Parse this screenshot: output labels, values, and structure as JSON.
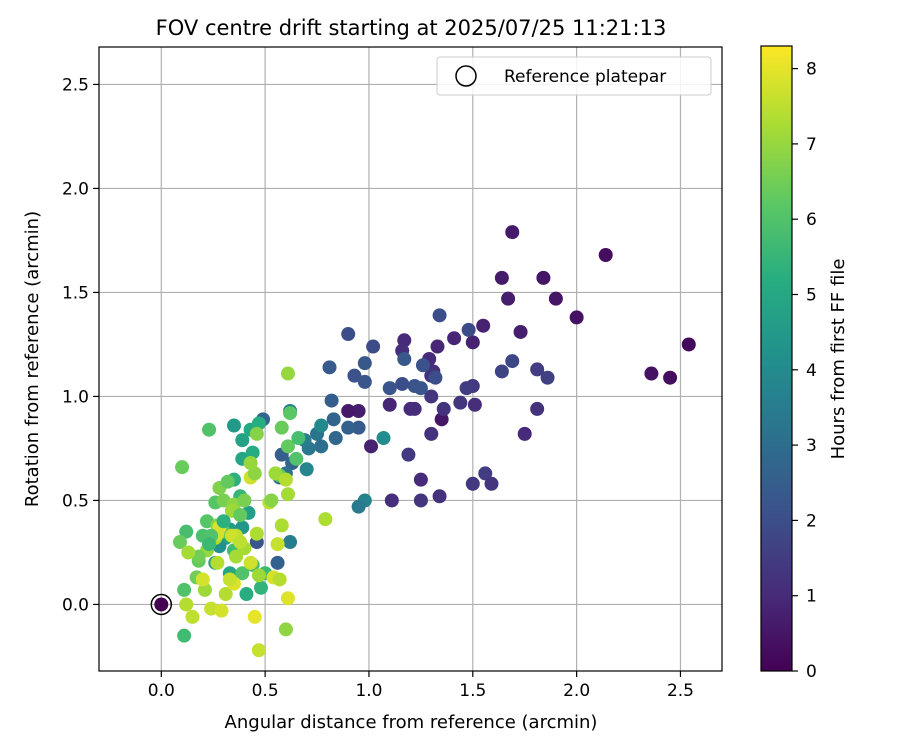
{
  "chart_data": {
    "type": "scatter",
    "title": "FOV centre drift starting at 2025/07/25 11:21:13",
    "xlabel": "Angular distance from reference (arcmin)",
    "ylabel": "Rotation from reference (arcmin)",
    "xlim": [
      -0.3,
      2.7
    ],
    "ylim": [
      -0.32,
      2.68
    ],
    "xticks": [
      0.0,
      0.5,
      1.0,
      1.5,
      2.0,
      2.5
    ],
    "xtick_labels": [
      "0.0",
      "0.5",
      "1.0",
      "1.5",
      "2.0",
      "2.5"
    ],
    "yticks": [
      0.0,
      0.5,
      1.0,
      1.5,
      2.0,
      2.5
    ],
    "ytick_labels": [
      "0.0",
      "0.5",
      "1.0",
      "1.5",
      "2.0",
      "2.5"
    ],
    "grid": true,
    "legend": {
      "position": "top-right",
      "entries": [
        "Reference platepar"
      ]
    },
    "colorbar": {
      "label": "Hours from first FF file",
      "colormap": "viridis",
      "range": [
        0,
        8.3
      ],
      "ticks": [
        0,
        1,
        2,
        3,
        4,
        5,
        6,
        7,
        8
      ],
      "tick_labels": [
        "0",
        "1",
        "2",
        "3",
        "4",
        "5",
        "6",
        "7",
        "8"
      ]
    },
    "reference_point": {
      "x": 0.0,
      "y": 0.0,
      "name": "Reference platepar"
    },
    "points": [
      {
        "x": 0.0,
        "y": 0.0,
        "h": 0.0
      },
      {
        "x": 2.54,
        "y": 1.25,
        "h": 0.2
      },
      {
        "x": 2.14,
        "y": 1.68,
        "h": 0.3
      },
      {
        "x": 2.45,
        "y": 1.09,
        "h": 0.3
      },
      {
        "x": 2.36,
        "y": 1.11,
        "h": 0.4
      },
      {
        "x": 2.0,
        "y": 1.38,
        "h": 0.4
      },
      {
        "x": 1.9,
        "y": 1.47,
        "h": 0.5
      },
      {
        "x": 1.84,
        "y": 1.57,
        "h": 0.5
      },
      {
        "x": 1.69,
        "y": 1.79,
        "h": 0.6
      },
      {
        "x": 1.64,
        "y": 1.57,
        "h": 0.6
      },
      {
        "x": 1.67,
        "y": 1.47,
        "h": 0.7
      },
      {
        "x": 1.73,
        "y": 1.31,
        "h": 0.7
      },
      {
        "x": 1.55,
        "y": 1.34,
        "h": 0.8
      },
      {
        "x": 1.5,
        "y": 1.26,
        "h": 0.8
      },
      {
        "x": 1.41,
        "y": 1.28,
        "h": 0.9
      },
      {
        "x": 1.33,
        "y": 1.24,
        "h": 0.9
      },
      {
        "x": 1.29,
        "y": 1.18,
        "h": 1.0
      },
      {
        "x": 1.17,
        "y": 1.27,
        "h": 1.0
      },
      {
        "x": 1.16,
        "y": 1.22,
        "h": 1.1
      },
      {
        "x": 1.31,
        "y": 1.12,
        "h": 1.1
      },
      {
        "x": 1.3,
        "y": 1.1,
        "h": 1.2
      },
      {
        "x": 0.95,
        "y": 0.93,
        "h": 0.7
      },
      {
        "x": 0.9,
        "y": 0.93,
        "h": 0.6
      },
      {
        "x": 1.01,
        "y": 0.76,
        "h": 0.8
      },
      {
        "x": 1.1,
        "y": 0.96,
        "h": 0.9
      },
      {
        "x": 1.2,
        "y": 0.94,
        "h": 1.0
      },
      {
        "x": 1.22,
        "y": 0.94,
        "h": 1.1
      },
      {
        "x": 1.35,
        "y": 0.89,
        "h": 0.5
      },
      {
        "x": 1.36,
        "y": 0.94,
        "h": 1.2
      },
      {
        "x": 1.44,
        "y": 0.97,
        "h": 1.3
      },
      {
        "x": 1.5,
        "y": 1.05,
        "h": 1.4
      },
      {
        "x": 1.47,
        "y": 1.04,
        "h": 1.5
      },
      {
        "x": 1.51,
        "y": 0.96,
        "h": 1.1
      },
      {
        "x": 1.3,
        "y": 0.82,
        "h": 1.2
      },
      {
        "x": 1.3,
        "y": 1.0,
        "h": 1.3
      },
      {
        "x": 1.19,
        "y": 0.72,
        "h": 1.4
      },
      {
        "x": 1.25,
        "y": 0.6,
        "h": 1.0
      },
      {
        "x": 1.11,
        "y": 0.5,
        "h": 1.1
      },
      {
        "x": 1.25,
        "y": 0.5,
        "h": 1.3
      },
      {
        "x": 1.34,
        "y": 0.52,
        "h": 1.2
      },
      {
        "x": 1.5,
        "y": 0.58,
        "h": 1.4
      },
      {
        "x": 1.56,
        "y": 0.63,
        "h": 1.5
      },
      {
        "x": 1.59,
        "y": 0.58,
        "h": 1.3
      },
      {
        "x": 1.75,
        "y": 0.82,
        "h": 1.0
      },
      {
        "x": 1.81,
        "y": 0.94,
        "h": 1.2
      },
      {
        "x": 1.81,
        "y": 1.13,
        "h": 1.5
      },
      {
        "x": 1.86,
        "y": 1.09,
        "h": 1.6
      },
      {
        "x": 1.64,
        "y": 1.12,
        "h": 1.7
      },
      {
        "x": 1.69,
        "y": 1.17,
        "h": 1.8
      },
      {
        "x": 1.48,
        "y": 1.32,
        "h": 1.9
      },
      {
        "x": 1.34,
        "y": 1.39,
        "h": 2.0
      },
      {
        "x": 1.22,
        "y": 1.05,
        "h": 2.1
      },
      {
        "x": 1.25,
        "y": 1.04,
        "h": 2.2
      },
      {
        "x": 1.32,
        "y": 1.09,
        "h": 2.0
      },
      {
        "x": 1.26,
        "y": 1.15,
        "h": 2.1
      },
      {
        "x": 1.17,
        "y": 1.18,
        "h": 2.3
      },
      {
        "x": 1.16,
        "y": 1.06,
        "h": 2.0
      },
      {
        "x": 1.1,
        "y": 1.04,
        "h": 2.2
      },
      {
        "x": 1.02,
        "y": 1.24,
        "h": 1.9
      },
      {
        "x": 0.9,
        "y": 1.3,
        "h": 2.0
      },
      {
        "x": 0.93,
        "y": 1.1,
        "h": 2.1
      },
      {
        "x": 0.98,
        "y": 1.07,
        "h": 2.2
      },
      {
        "x": 0.98,
        "y": 1.16,
        "h": 2.3
      },
      {
        "x": 0.81,
        "y": 1.14,
        "h": 2.4
      },
      {
        "x": 0.82,
        "y": 0.98,
        "h": 2.5
      },
      {
        "x": 0.95,
        "y": 0.85,
        "h": 2.4
      },
      {
        "x": 0.9,
        "y": 0.85,
        "h": 2.6
      },
      {
        "x": 0.83,
        "y": 0.89,
        "h": 2.7
      },
      {
        "x": 0.84,
        "y": 0.8,
        "h": 2.8
      },
      {
        "x": 0.77,
        "y": 0.76,
        "h": 3.0
      },
      {
        "x": 0.75,
        "y": 0.82,
        "h": 3.2
      },
      {
        "x": 0.71,
        "y": 0.75,
        "h": 3.3
      },
      {
        "x": 0.69,
        "y": 0.79,
        "h": 3.5
      },
      {
        "x": 0.62,
        "y": 0.93,
        "h": 3.6
      },
      {
        "x": 0.58,
        "y": 0.72,
        "h": 2.5
      },
      {
        "x": 0.63,
        "y": 0.68,
        "h": 2.7
      },
      {
        "x": 0.6,
        "y": 0.63,
        "h": 3.1
      },
      {
        "x": 0.57,
        "y": 0.61,
        "h": 2.9
      },
      {
        "x": 0.49,
        "y": 0.89,
        "h": 2.8
      },
      {
        "x": 0.46,
        "y": 0.3,
        "h": 2.2
      },
      {
        "x": 0.56,
        "y": 0.2,
        "h": 2.6
      },
      {
        "x": 0.62,
        "y": 0.3,
        "h": 3.5
      },
      {
        "x": 0.7,
        "y": 0.65,
        "h": 3.8
      },
      {
        "x": 0.77,
        "y": 0.86,
        "h": 3.9
      },
      {
        "x": 1.07,
        "y": 0.8,
        "h": 4.0
      },
      {
        "x": 0.98,
        "y": 0.5,
        "h": 3.7
      },
      {
        "x": 0.95,
        "y": 0.47,
        "h": 3.4
      },
      {
        "x": 0.35,
        "y": 0.86,
        "h": 4.5
      },
      {
        "x": 0.39,
        "y": 0.79,
        "h": 4.8
      },
      {
        "x": 0.43,
        "y": 0.84,
        "h": 5.0
      },
      {
        "x": 0.47,
        "y": 0.87,
        "h": 5.2
      },
      {
        "x": 0.39,
        "y": 0.7,
        "h": 4.9
      },
      {
        "x": 0.44,
        "y": 0.73,
        "h": 5.1
      },
      {
        "x": 0.35,
        "y": 0.6,
        "h": 5.3
      },
      {
        "x": 0.38,
        "y": 0.52,
        "h": 5.5
      },
      {
        "x": 0.42,
        "y": 0.44,
        "h": 4.7
      },
      {
        "x": 0.33,
        "y": 0.36,
        "h": 4.6
      },
      {
        "x": 0.39,
        "y": 0.37,
        "h": 4.4
      },
      {
        "x": 0.31,
        "y": 0.32,
        "h": 4.8
      },
      {
        "x": 0.28,
        "y": 0.28,
        "h": 4.2
      },
      {
        "x": 0.26,
        "y": 0.2,
        "h": 4.6
      },
      {
        "x": 0.33,
        "y": 0.15,
        "h": 4.9
      },
      {
        "x": 0.41,
        "y": 0.05,
        "h": 5.2
      },
      {
        "x": 0.48,
        "y": 0.08,
        "h": 5.4
      },
      {
        "x": 0.5,
        "y": 0.15,
        "h": 5.6
      },
      {
        "x": 0.44,
        "y": 0.19,
        "h": 5.8
      },
      {
        "x": 0.39,
        "y": 0.15,
        "h": 6.0
      },
      {
        "x": 0.35,
        "y": 0.26,
        "h": 5.7
      },
      {
        "x": 0.3,
        "y": 0.35,
        "h": 6.2
      },
      {
        "x": 0.22,
        "y": 0.4,
        "h": 6.1
      },
      {
        "x": 0.2,
        "y": 0.33,
        "h": 5.9
      },
      {
        "x": 0.18,
        "y": 0.21,
        "h": 6.3
      },
      {
        "x": 0.17,
        "y": 0.13,
        "h": 6.5
      },
      {
        "x": 0.12,
        "y": 0.35,
        "h": 5.8
      },
      {
        "x": 0.09,
        "y": 0.3,
        "h": 6.4
      },
      {
        "x": 0.11,
        "y": 0.07,
        "h": 6.0
      },
      {
        "x": 0.11,
        "y": -0.15,
        "h": 5.7
      },
      {
        "x": 0.23,
        "y": 0.84,
        "h": 6.0
      },
      {
        "x": 0.1,
        "y": 0.66,
        "h": 6.4
      },
      {
        "x": 0.28,
        "y": 0.56,
        "h": 6.7
      },
      {
        "x": 0.32,
        "y": 0.59,
        "h": 6.3
      },
      {
        "x": 0.26,
        "y": 0.49,
        "h": 6.1
      },
      {
        "x": 0.3,
        "y": 0.5,
        "h": 6.6
      },
      {
        "x": 0.35,
        "y": 0.48,
        "h": 6.9
      },
      {
        "x": 0.34,
        "y": 0.45,
        "h": 7.1
      },
      {
        "x": 0.27,
        "y": 0.38,
        "h": 6.8
      },
      {
        "x": 0.26,
        "y": 0.32,
        "h": 7.3
      },
      {
        "x": 0.22,
        "y": 0.26,
        "h": 7.0
      },
      {
        "x": 0.18,
        "y": 0.23,
        "h": 6.5
      },
      {
        "x": 0.13,
        "y": 0.25,
        "h": 7.2
      },
      {
        "x": 0.12,
        "y": 0.0,
        "h": 7.4
      },
      {
        "x": 0.15,
        "y": -0.06,
        "h": 7.5
      },
      {
        "x": 0.21,
        "y": 0.07,
        "h": 7.1
      },
      {
        "x": 0.24,
        "y": -0.02,
        "h": 7.6
      },
      {
        "x": 0.29,
        "y": -0.03,
        "h": 7.8
      },
      {
        "x": 0.31,
        "y": 0.05,
        "h": 7.4
      },
      {
        "x": 0.35,
        "y": 0.1,
        "h": 7.9
      },
      {
        "x": 0.4,
        "y": 0.27,
        "h": 7.2
      },
      {
        "x": 0.36,
        "y": 0.33,
        "h": 7.5
      },
      {
        "x": 0.46,
        "y": 0.34,
        "h": 7.3
      },
      {
        "x": 0.43,
        "y": 0.61,
        "h": 7.7
      },
      {
        "x": 0.45,
        "y": 0.63,
        "h": 6.9
      },
      {
        "x": 0.43,
        "y": 0.68,
        "h": 7.0
      },
      {
        "x": 0.46,
        "y": 0.82,
        "h": 6.8
      },
      {
        "x": 0.57,
        "y": 0.62,
        "h": 6.2
      },
      {
        "x": 0.55,
        "y": 0.63,
        "h": 7.1
      },
      {
        "x": 0.58,
        "y": 0.85,
        "h": 6.4
      },
      {
        "x": 0.62,
        "y": 0.92,
        "h": 6.2
      },
      {
        "x": 0.61,
        "y": 0.76,
        "h": 6.3
      },
      {
        "x": 0.65,
        "y": 0.7,
        "h": 6.0
      },
      {
        "x": 0.66,
        "y": 0.8,
        "h": 5.8
      },
      {
        "x": 0.61,
        "y": 1.11,
        "h": 7.0
      },
      {
        "x": 0.6,
        "y": 0.6,
        "h": 7.4
      },
      {
        "x": 0.61,
        "y": 0.53,
        "h": 7.2
      },
      {
        "x": 0.52,
        "y": 0.49,
        "h": 7.5
      },
      {
        "x": 0.53,
        "y": 0.5,
        "h": 6.8
      },
      {
        "x": 0.58,
        "y": 0.38,
        "h": 7.3
      },
      {
        "x": 0.56,
        "y": 0.29,
        "h": 7.6
      },
      {
        "x": 0.54,
        "y": 0.13,
        "h": 7.8
      },
      {
        "x": 0.57,
        "y": 0.12,
        "h": 7.4
      },
      {
        "x": 0.61,
        "y": 0.03,
        "h": 7.9
      },
      {
        "x": 0.6,
        "y": -0.12,
        "h": 6.9
      },
      {
        "x": 0.47,
        "y": -0.22,
        "h": 7.6
      },
      {
        "x": 0.45,
        "y": -0.06,
        "h": 8.0
      },
      {
        "x": 0.43,
        "y": 0.2,
        "h": 7.7
      },
      {
        "x": 0.47,
        "y": 0.14,
        "h": 7.1
      },
      {
        "x": 0.79,
        "y": 0.41,
        "h": 7.3
      },
      {
        "x": 0.2,
        "y": 0.12,
        "h": 7.8
      },
      {
        "x": 0.27,
        "y": 0.2,
        "h": 7.4
      },
      {
        "x": 0.28,
        "y": 0.37,
        "h": 7.9
      },
      {
        "x": 0.33,
        "y": 0.12,
        "h": 7.6
      },
      {
        "x": 0.36,
        "y": 0.23,
        "h": 7.2
      },
      {
        "x": 0.34,
        "y": 0.33,
        "h": 7.7
      },
      {
        "x": 0.38,
        "y": 0.3,
        "h": 7.5
      },
      {
        "x": 0.27,
        "y": 0.34,
        "h": 7.8
      },
      {
        "x": 0.4,
        "y": 0.5,
        "h": 6.6
      },
      {
        "x": 0.38,
        "y": 0.43,
        "h": 6.3
      },
      {
        "x": 0.24,
        "y": 0.33,
        "h": 6.0
      },
      {
        "x": 0.23,
        "y": 0.29,
        "h": 5.6
      },
      {
        "x": 0.3,
        "y": 0.4,
        "h": 5.3
      }
    ]
  }
}
